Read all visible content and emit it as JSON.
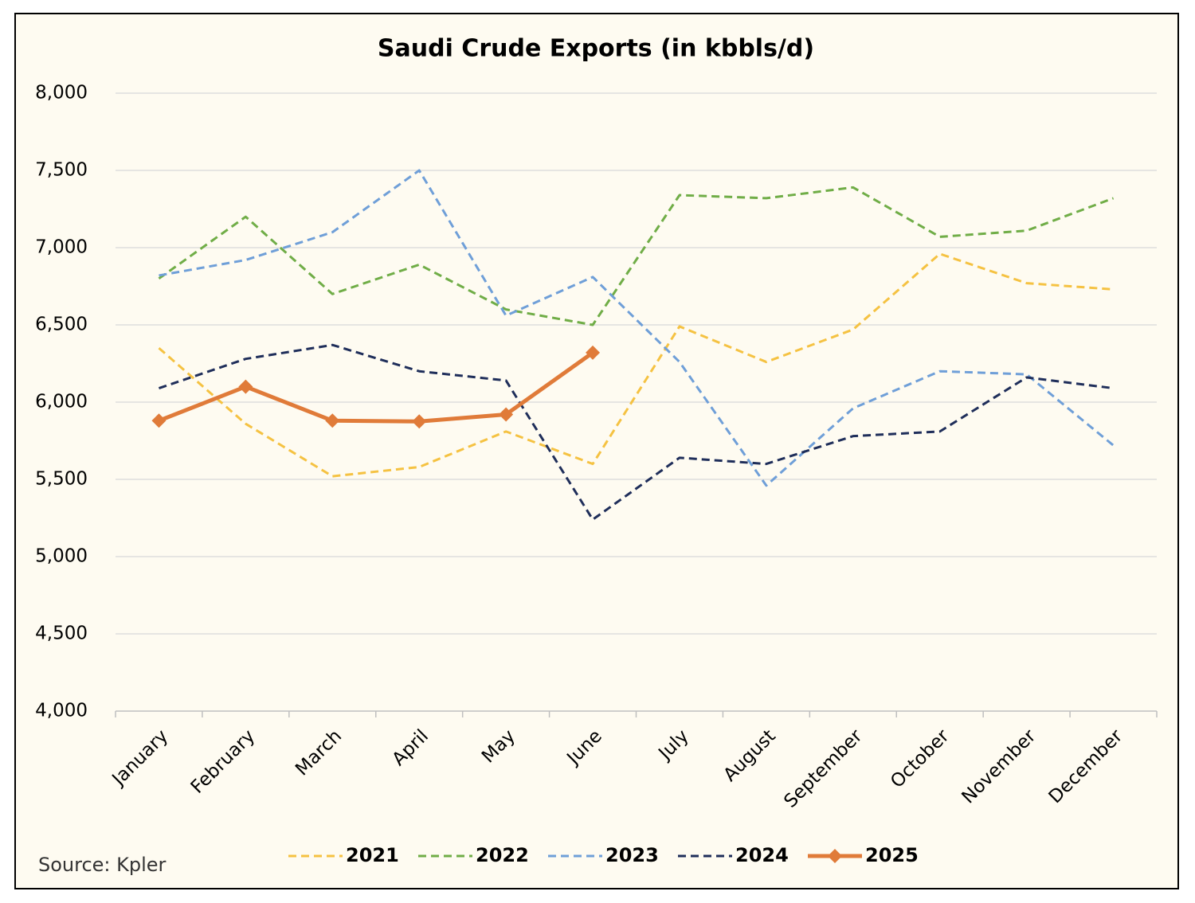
{
  "chart_data": {
    "type": "line",
    "title": "Saudi Crude Exports (in kbbls/d)",
    "source": "Source: Kpler",
    "categories": [
      "January",
      "February",
      "March",
      "April",
      "May",
      "June",
      "July",
      "August",
      "September",
      "October",
      "November",
      "December"
    ],
    "series": [
      {
        "name": "2021",
        "color": "#f5c242",
        "line_style": "dashed",
        "values": [
          6350,
          5860,
          5520,
          5580,
          5810,
          5600,
          6490,
          6260,
          6470,
          6960,
          6770,
          6730
        ]
      },
      {
        "name": "2022",
        "color": "#70ad47",
        "line_style": "dashed",
        "values": [
          6800,
          7200,
          6700,
          6890,
          6600,
          6500,
          7340,
          7320,
          7390,
          7070,
          7110,
          7320
        ]
      },
      {
        "name": "2023",
        "color": "#6f9fd8",
        "line_style": "dashed",
        "values": [
          6820,
          6920,
          7100,
          7500,
          6560,
          6810,
          6260,
          5460,
          5960,
          6200,
          6180,
          5720
        ]
      },
      {
        "name": "2024",
        "color": "#1f2e5a",
        "line_style": "dashed",
        "values": [
          6090,
          6280,
          6370,
          6200,
          6140,
          5240,
          5640,
          5600,
          5780,
          5810,
          6160,
          6090
        ]
      },
      {
        "name": "2025",
        "color": "#e07b39",
        "line_style": "solid",
        "marker": "diamond",
        "values": [
          5880,
          6100,
          5880,
          5875,
          5920,
          6320,
          null,
          null,
          null,
          null,
          null,
          null
        ]
      }
    ],
    "ylim": [
      4000,
      8000
    ],
    "yticks": [
      {
        "value": 4000,
        "label": "4,000"
      },
      {
        "value": 4500,
        "label": "4,500"
      },
      {
        "value": 5000,
        "label": "5,000"
      },
      {
        "value": 5500,
        "label": "5,500"
      },
      {
        "value": 6000,
        "label": "6,000"
      },
      {
        "value": 6500,
        "label": "6,500"
      },
      {
        "value": 7000,
        "label": "7,000"
      },
      {
        "value": 7500,
        "label": "7,500"
      },
      {
        "value": 8000,
        "label": "8,000"
      }
    ],
    "grid": true,
    "legend": "bottom"
  }
}
